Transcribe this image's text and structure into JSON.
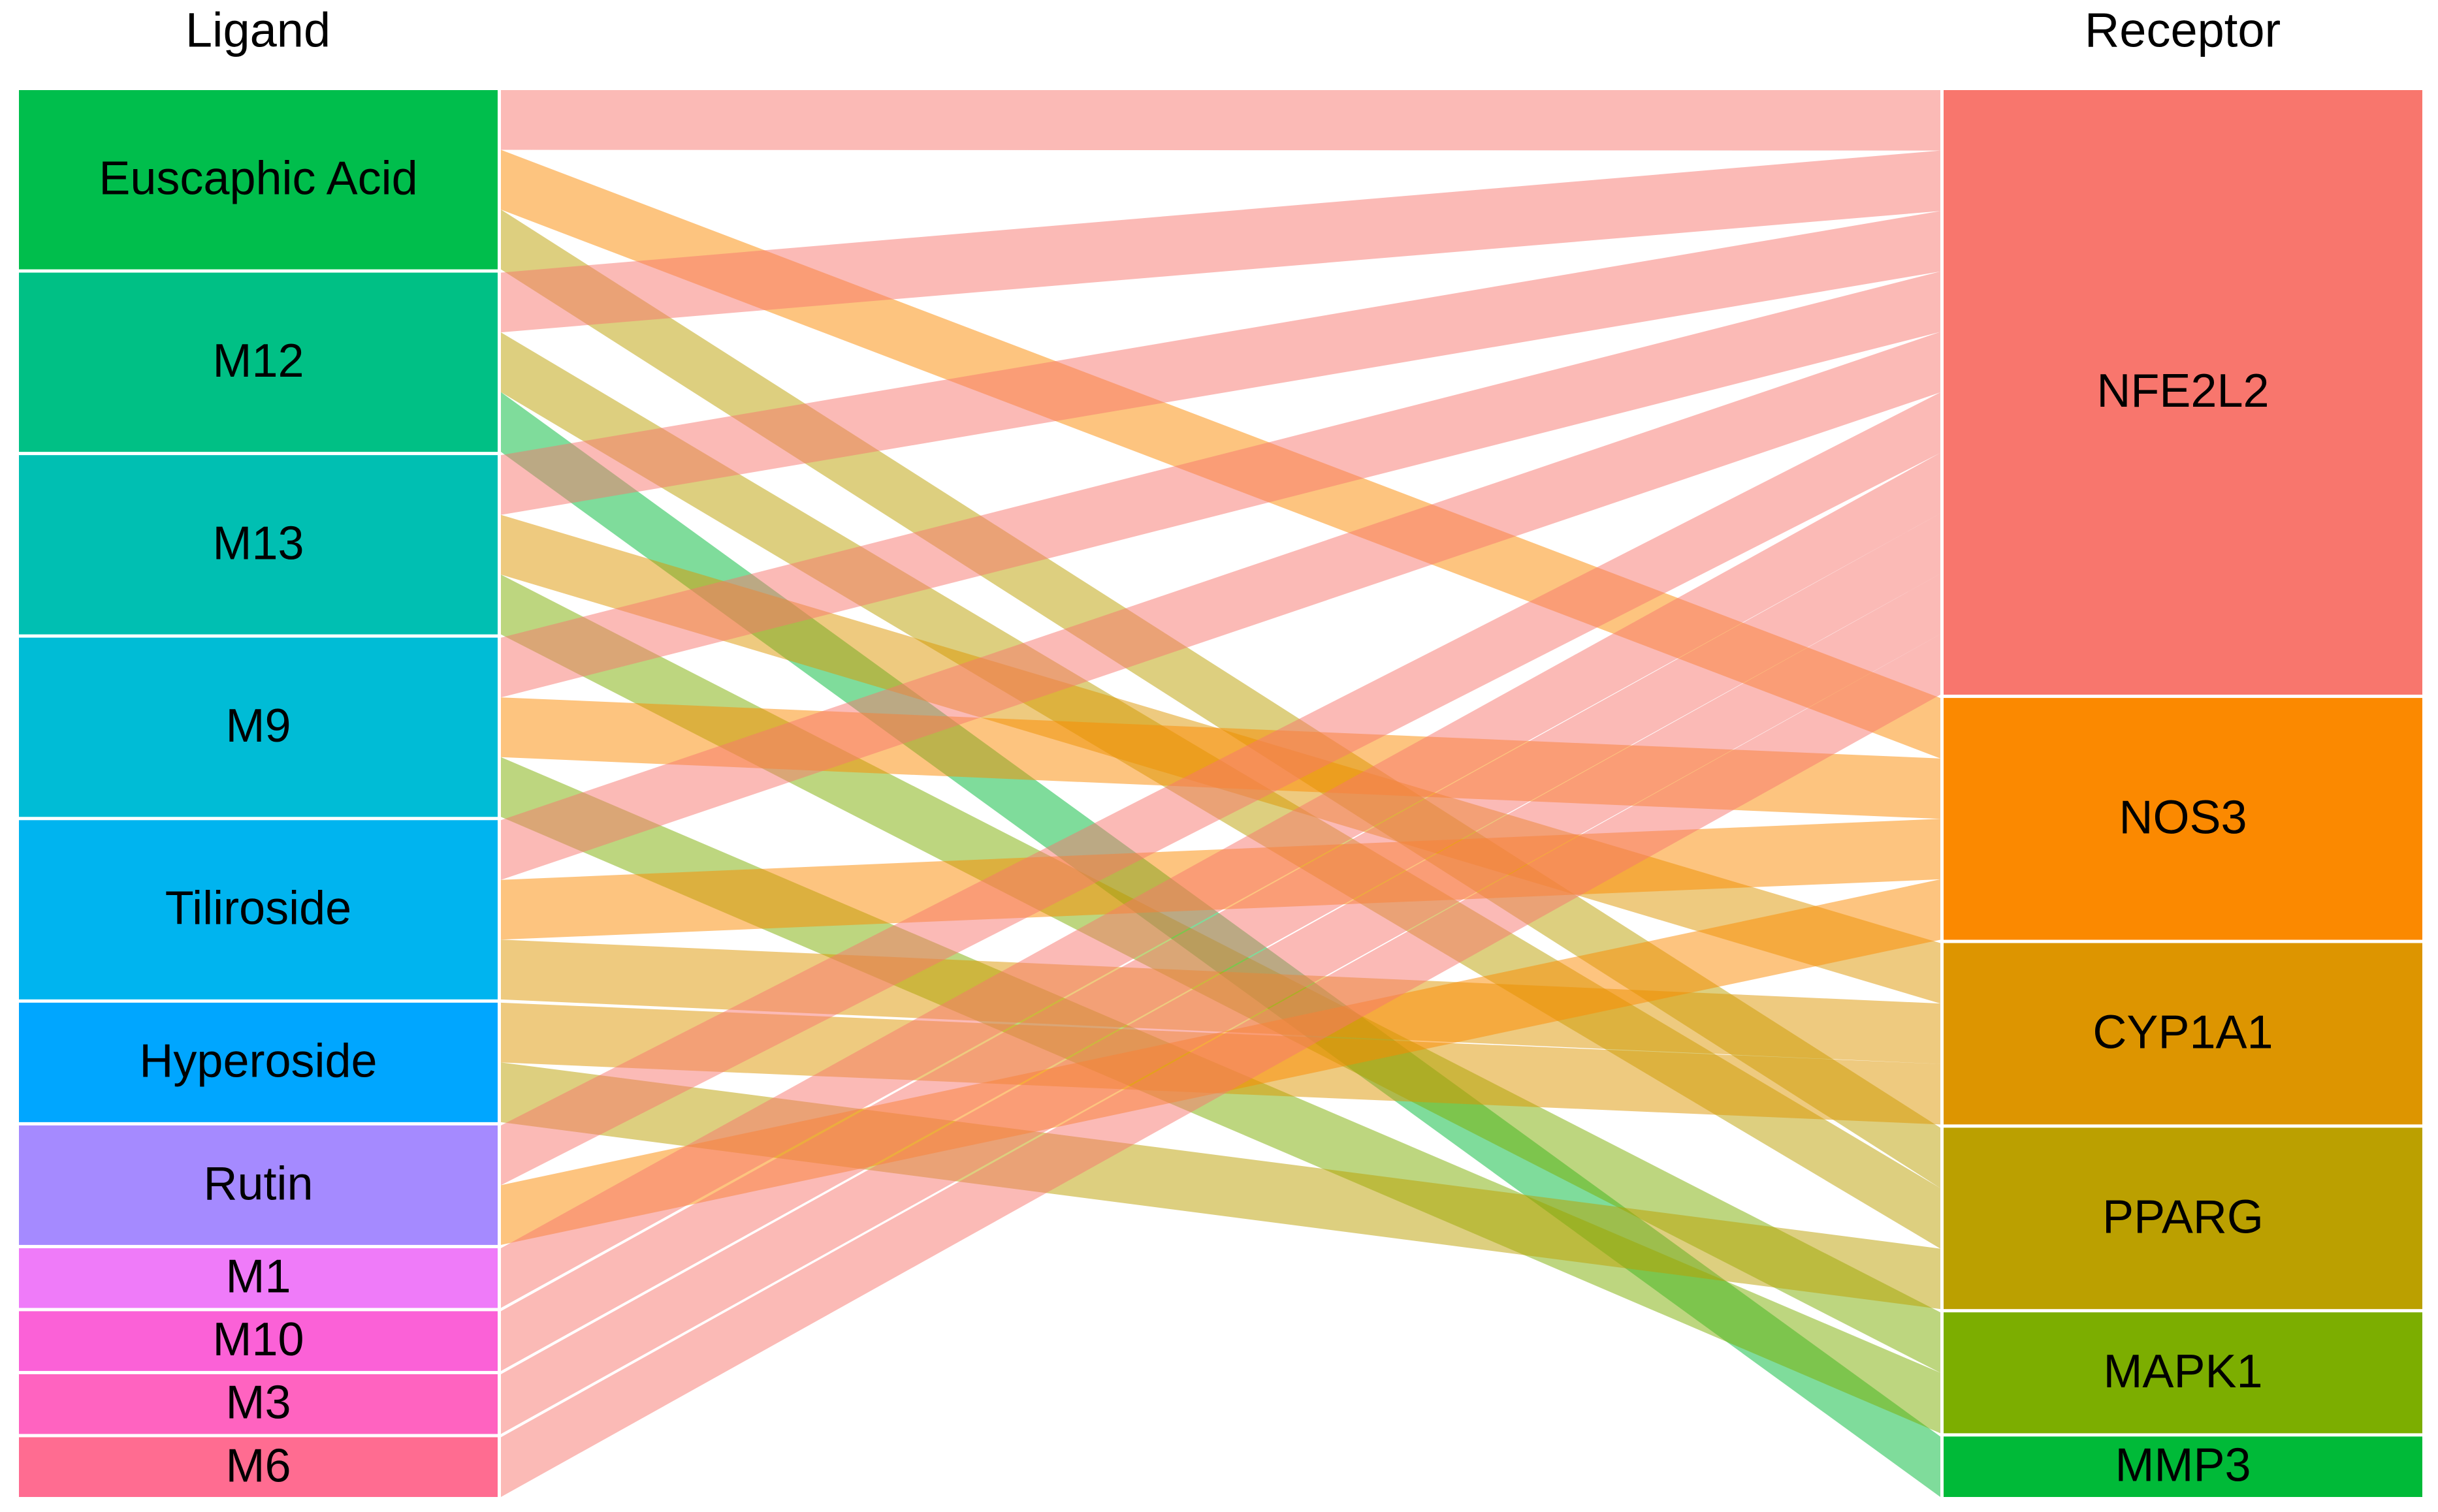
{
  "chart_data": {
    "type": "alluvial",
    "axis_labels": [
      "Ligand",
      "Receptor"
    ],
    "ligands": [
      {
        "name": "Euscaphic Acid",
        "color": "#00BE4C"
      },
      {
        "name": "M12",
        "color": "#00C085"
      },
      {
        "name": "M13",
        "color": "#00BFB2"
      },
      {
        "name": "M9",
        "color": "#00BCD6"
      },
      {
        "name": "Tiliroside",
        "color": "#00B4EF"
      },
      {
        "name": "Hyperoside",
        "color": "#00A6FF"
      },
      {
        "name": "Rutin",
        "color": "#A58AFF"
      },
      {
        "name": "M1",
        "color": "#EF7BF9"
      },
      {
        "name": "M10",
        "color": "#FB61D7"
      },
      {
        "name": "M3",
        "color": "#FF63C0"
      },
      {
        "name": "M6",
        "color": "#FF6C91"
      }
    ],
    "receptors": [
      {
        "name": "NFE2L2",
        "color": "#F8766D"
      },
      {
        "name": "NOS3",
        "color": "#FB8900"
      },
      {
        "name": "CYP1A1",
        "color": "#DD9500"
      },
      {
        "name": "PPARG",
        "color": "#BBA000"
      },
      {
        "name": "MAPK1",
        "color": "#7CAE00"
      },
      {
        "name": "MMP3",
        "color": "#00BA38"
      }
    ],
    "links": [
      {
        "source": "Euscaphic Acid",
        "target": "NFE2L2",
        "value": 1
      },
      {
        "source": "Euscaphic Acid",
        "target": "NOS3",
        "value": 1
      },
      {
        "source": "Euscaphic Acid",
        "target": "PPARG",
        "value": 1
      },
      {
        "source": "M12",
        "target": "NFE2L2",
        "value": 1
      },
      {
        "source": "M12",
        "target": "PPARG",
        "value": 1
      },
      {
        "source": "M12",
        "target": "MMP3",
        "value": 1
      },
      {
        "source": "M13",
        "target": "NFE2L2",
        "value": 1
      },
      {
        "source": "M13",
        "target": "CYP1A1",
        "value": 1
      },
      {
        "source": "M13",
        "target": "MAPK1",
        "value": 1
      },
      {
        "source": "M9",
        "target": "NFE2L2",
        "value": 1
      },
      {
        "source": "M9",
        "target": "NOS3",
        "value": 1
      },
      {
        "source": "M9",
        "target": "MAPK1",
        "value": 1
      },
      {
        "source": "Tiliroside",
        "target": "NFE2L2",
        "value": 1
      },
      {
        "source": "Tiliroside",
        "target": "NOS3",
        "value": 1
      },
      {
        "source": "Tiliroside",
        "target": "CYP1A1",
        "value": 1
      },
      {
        "source": "Hyperoside",
        "target": "CYP1A1",
        "value": 1
      },
      {
        "source": "Hyperoside",
        "target": "PPARG",
        "value": 1
      },
      {
        "source": "Rutin",
        "target": "NFE2L2",
        "value": 1
      },
      {
        "source": "Rutin",
        "target": "NOS3",
        "value": 1
      },
      {
        "source": "M1",
        "target": "NFE2L2",
        "value": 1
      },
      {
        "source": "M10",
        "target": "NFE2L2",
        "value": 1
      },
      {
        "source": "M3",
        "target": "NFE2L2",
        "value": 1
      },
      {
        "source": "M6",
        "target": "NFE2L2",
        "value": 1
      }
    ]
  }
}
